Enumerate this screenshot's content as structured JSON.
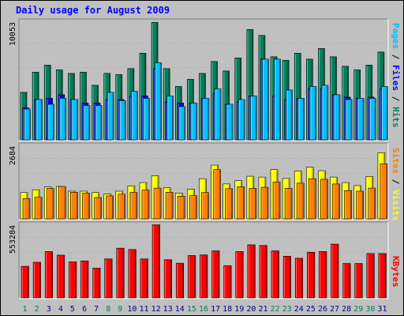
{
  "title": "Daily usage for August 2009",
  "colors": {
    "background": "#c0c0c0",
    "panel": "#c0c0c0",
    "title": "#0000ff",
    "hits": "#00805c",
    "files": "#0000ff",
    "pages": "#00c0ff",
    "visits": "#ffff00",
    "sites": "#ff8000",
    "kbytes": "#ff0000",
    "day_weekday": "#00008b",
    "day_weekend": "#00805c"
  },
  "chart_data": [
    {
      "type": "bar",
      "panel": "hits-files-pages",
      "axis_max_label": "10053",
      "ylim": [
        0,
        10053
      ],
      "legend": [
        "Pages",
        "/",
        "Files",
        "/",
        "Hits"
      ],
      "categories": [
        "1",
        "2",
        "3",
        "4",
        "5",
        "6",
        "7",
        "8",
        "9",
        "10",
        "11",
        "12",
        "13",
        "14",
        "15",
        "16",
        "17",
        "18",
        "19",
        "20",
        "21",
        "22",
        "23",
        "24",
        "25",
        "26",
        "27",
        "28",
        "29",
        "30",
        "31"
      ],
      "series": [
        {
          "name": "Hits",
          "values": [
            4000,
            5700,
            6300,
            5900,
            5600,
            5700,
            4600,
            5600,
            5500,
            6000,
            7300,
            9900,
            6000,
            4500,
            5100,
            5600,
            6600,
            5800,
            6900,
            9300,
            8800,
            7000,
            6700,
            7300,
            6800,
            7700,
            7000,
            6200,
            5900,
            6300,
            7400
          ]
        },
        {
          "name": "Files",
          "values": [
            2700,
            3400,
            3500,
            3800,
            3400,
            3100,
            3100,
            3400,
            3400,
            3700,
            3700,
            6000,
            3200,
            3100,
            3100,
            3500,
            3900,
            3000,
            3200,
            3700,
            6800,
            3700,
            3400,
            3500,
            4300,
            4300,
            3800,
            3600,
            3500,
            3600,
            4300
          ]
        },
        {
          "name": "Pages",
          "values": [
            2600,
            3400,
            3000,
            3500,
            3400,
            2900,
            2900,
            4000,
            3300,
            4100,
            3500,
            6500,
            3700,
            2800,
            3100,
            3500,
            4300,
            3000,
            3400,
            3700,
            6800,
            6800,
            4200,
            3500,
            4500,
            4600,
            3800,
            3400,
            3500,
            3500,
            4500
          ]
        }
      ]
    },
    {
      "type": "bar",
      "panel": "visits-sites",
      "axis_max_label": "2684",
      "ylim": [
        0,
        2684
      ],
      "legend": [
        "Sites",
        "/",
        "Visits"
      ],
      "categories": [
        "1",
        "2",
        "3",
        "4",
        "5",
        "6",
        "7",
        "8",
        "9",
        "10",
        "11",
        "12",
        "13",
        "14",
        "15",
        "16",
        "17",
        "18",
        "19",
        "20",
        "21",
        "22",
        "23",
        "24",
        "25",
        "26",
        "27",
        "28",
        "29",
        "30",
        "31"
      ],
      "series": [
        {
          "name": "Visits",
          "values": [
            950,
            1050,
            1150,
            1170,
            1000,
            1000,
            950,
            900,
            1000,
            1190,
            1310,
            1560,
            1120,
            930,
            1070,
            1450,
            1940,
            1260,
            1380,
            1540,
            1510,
            1780,
            1460,
            1730,
            1870,
            1740,
            1510,
            1310,
            1200,
            1530,
            2390
          ]
        },
        {
          "name": "Sites",
          "values": [
            730,
            780,
            1100,
            1170,
            960,
            930,
            770,
            830,
            890,
            960,
            1040,
            1110,
            960,
            820,
            840,
            950,
            1780,
            1090,
            1160,
            1100,
            1140,
            1330,
            1100,
            1290,
            1450,
            1430,
            1260,
            1020,
            1000,
            1110,
            1990
          ]
        }
      ]
    },
    {
      "type": "bar",
      "panel": "kbytes",
      "axis_max_label": "553284",
      "ylim": [
        0,
        553284
      ],
      "legend": [
        "KBytes"
      ],
      "categories": [
        "1",
        "2",
        "3",
        "4",
        "5",
        "6",
        "7",
        "8",
        "9",
        "10",
        "11",
        "12",
        "13",
        "14",
        "15",
        "16",
        "17",
        "18",
        "19",
        "20",
        "21",
        "22",
        "23",
        "24",
        "25",
        "26",
        "27",
        "28",
        "29",
        "30",
        "31"
      ],
      "series": [
        {
          "name": "KBytes",
          "values": [
            235000,
            265000,
            345000,
            318000,
            268000,
            275000,
            221000,
            290000,
            370000,
            360000,
            290000,
            544000,
            284000,
            258000,
            315000,
            320000,
            350000,
            240000,
            345000,
            395000,
            390000,
            350000,
            310000,
            295000,
            340000,
            345000,
            400000,
            256000,
            256000,
            330000,
            330000
          ]
        }
      ]
    }
  ],
  "x_axis": {
    "days": [
      {
        "label": "1",
        "weekend": true
      },
      {
        "label": "2",
        "weekend": true
      },
      {
        "label": "3",
        "weekend": false
      },
      {
        "label": "4",
        "weekend": false
      },
      {
        "label": "5",
        "weekend": false
      },
      {
        "label": "6",
        "weekend": false
      },
      {
        "label": "7",
        "weekend": false
      },
      {
        "label": "8",
        "weekend": true
      },
      {
        "label": "9",
        "weekend": true
      },
      {
        "label": "10",
        "weekend": false
      },
      {
        "label": "11",
        "weekend": false
      },
      {
        "label": "12",
        "weekend": false
      },
      {
        "label": "13",
        "weekend": false
      },
      {
        "label": "14",
        "weekend": false
      },
      {
        "label": "15",
        "weekend": true
      },
      {
        "label": "16",
        "weekend": true
      },
      {
        "label": "17",
        "weekend": false
      },
      {
        "label": "18",
        "weekend": false
      },
      {
        "label": "19",
        "weekend": false
      },
      {
        "label": "20",
        "weekend": false
      },
      {
        "label": "21",
        "weekend": false
      },
      {
        "label": "22",
        "weekend": true
      },
      {
        "label": "23",
        "weekend": true
      },
      {
        "label": "24",
        "weekend": false
      },
      {
        "label": "25",
        "weekend": false
      },
      {
        "label": "26",
        "weekend": false
      },
      {
        "label": "27",
        "weekend": false
      },
      {
        "label": "28",
        "weekend": false
      },
      {
        "label": "29",
        "weekend": true
      },
      {
        "label": "30",
        "weekend": true
      },
      {
        "label": "31",
        "weekend": false
      }
    ]
  }
}
